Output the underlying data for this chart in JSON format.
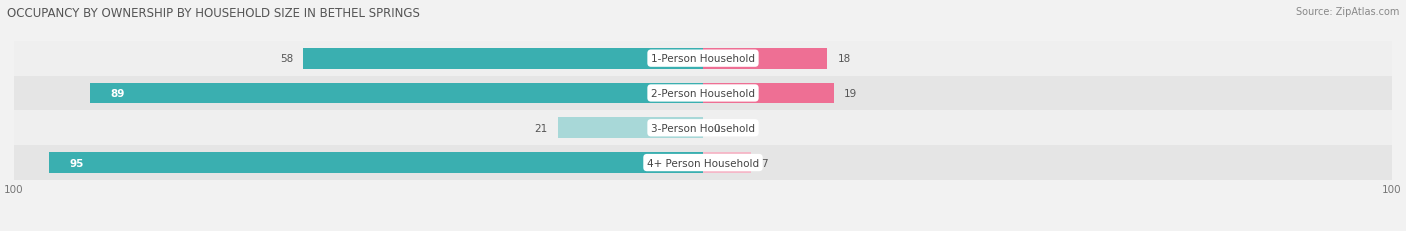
{
  "title": "OCCUPANCY BY OWNERSHIP BY HOUSEHOLD SIZE IN BETHEL SPRINGS",
  "source": "Source: ZipAtlas.com",
  "categories": [
    "1-Person Household",
    "2-Person Household",
    "3-Person Household",
    "4+ Person Household"
  ],
  "owner_values": [
    58,
    89,
    21,
    95
  ],
  "renter_values": [
    18,
    19,
    0,
    7
  ],
  "owner_color_dark": "#3AAFB0",
  "owner_color_light": "#A8D8D8",
  "renter_color_dark": "#EE6F94",
  "renter_color_light": "#F5B8C8",
  "row_bg_even": "#EFEFEF",
  "row_bg_odd": "#E5E5E5",
  "axis_max": 100,
  "title_fontsize": 8.5,
  "label_fontsize": 7.5,
  "value_fontsize": 7.5,
  "source_fontsize": 7,
  "bg_color": "#F2F2F2"
}
